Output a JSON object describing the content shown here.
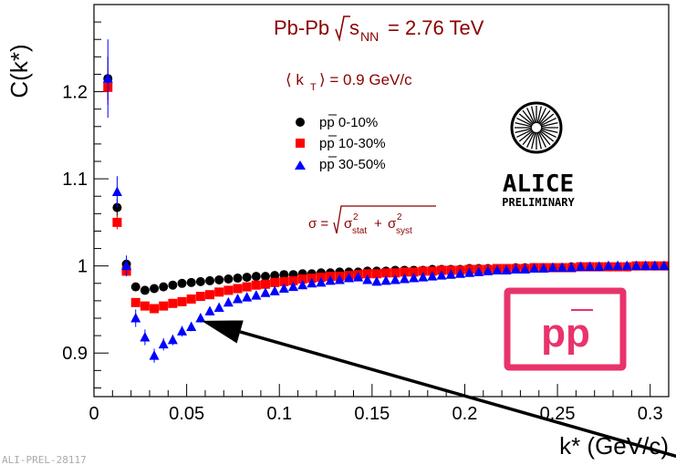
{
  "chart_data": {
    "type": "scatter",
    "xlabel": "k* (GeV/c)",
    "ylabel": "C(k*)",
    "xlim": [
      0,
      0.31
    ],
    "ylim": [
      0.85,
      1.3
    ],
    "x_ticks": [
      "0",
      "0.05",
      "0.1",
      "0.15",
      "0.2",
      "0.25",
      "0.3"
    ],
    "y_ticks": [
      "0.9",
      "1",
      "1.1",
      "1.2"
    ],
    "annotations": {
      "system": "Pb-Pb",
      "energy_label": "s",
      "energy_sub": "NN",
      "energy_value": "= 2.76 TeV",
      "kt": "⟨ k",
      "kt_sub": "T",
      "kt_value": "⟩ = 0.9 GeV/c",
      "sigma_lhs": "σ =",
      "sigma_stat_sym": "σ",
      "sigma_stat_sup": "2",
      "sigma_stat_sub": "stat",
      "sigma_plus": "+",
      "sigma_syst_sym": "σ",
      "sigma_syst_sup": "2",
      "sigma_syst_sub": "syst",
      "logo_title": "ALICE",
      "logo_subtitle": "PRELIMINARY",
      "pair_label": "pp",
      "figure_id": "ALI-PREL-28117"
    },
    "series": [
      {
        "name": "pp̅ 0-10%",
        "legend": "pp 0-10%",
        "color": "#000000",
        "marker": "circle",
        "x": [
          0.0075,
          0.0125,
          0.0175,
          0.0225,
          0.0275,
          0.0325,
          0.0375,
          0.0425,
          0.0475,
          0.0525,
          0.0575,
          0.0625,
          0.0675,
          0.0725,
          0.0775,
          0.0825,
          0.0875,
          0.0925,
          0.0975,
          0.1025,
          0.1075,
          0.1125,
          0.1175,
          0.1225,
          0.1275,
          0.1325,
          0.1375,
          0.1425,
          0.1475,
          0.1525,
          0.1575,
          0.1625,
          0.1675,
          0.1725,
          0.1775,
          0.1825,
          0.1875,
          0.1925,
          0.1975,
          0.2025,
          0.2075,
          0.2125,
          0.2175,
          0.2225,
          0.2275,
          0.2325,
          0.2375,
          0.2425,
          0.2475,
          0.2525,
          0.2575,
          0.2625,
          0.2675,
          0.2725,
          0.2775,
          0.2825,
          0.2875,
          0.2925,
          0.2975,
          0.3025,
          0.3075
        ],
        "y": [
          1.215,
          1.067,
          1.002,
          0.976,
          0.972,
          0.974,
          0.976,
          0.978,
          0.98,
          0.981,
          0.982,
          0.983,
          0.984,
          0.985,
          0.986,
          0.987,
          0.988,
          0.988,
          0.989,
          0.99,
          0.99,
          0.991,
          0.991,
          0.992,
          0.992,
          0.993,
          0.993,
          0.993,
          0.994,
          0.994,
          0.994,
          0.995,
          0.995,
          0.995,
          0.995,
          0.996,
          0.996,
          0.996,
          0.996,
          0.997,
          0.997,
          0.997,
          0.997,
          0.997,
          0.998,
          0.998,
          0.998,
          0.998,
          0.998,
          0.998,
          0.999,
          0.999,
          0.999,
          0.999,
          0.999,
          0.999,
          0.999,
          1.0,
          1.0,
          1.0,
          1.0
        ],
        "y_err": [
          0.025,
          0.01,
          0.006,
          0.004,
          0.003,
          0.003,
          0.003,
          0.002,
          0.002,
          0.002,
          0.002,
          0.002,
          0.002,
          0.002,
          0.002,
          0.002,
          0.002,
          0.002,
          0.002,
          0.002,
          0.002,
          0.002,
          0.002,
          0.002,
          0.002,
          0.002,
          0.002,
          0.002,
          0.002,
          0.002,
          0.002,
          0.002,
          0.002,
          0.002,
          0.002,
          0.002,
          0.002,
          0.002,
          0.002,
          0.002,
          0.002,
          0.002,
          0.002,
          0.002,
          0.002,
          0.002,
          0.002,
          0.002,
          0.002,
          0.002,
          0.002,
          0.002,
          0.002,
          0.002,
          0.002,
          0.002,
          0.002,
          0.002,
          0.002,
          0.002,
          0.002
        ]
      },
      {
        "name": "pp̅ 10-30%",
        "legend": "pp 10-30%",
        "color": "#ff0000",
        "marker": "square",
        "x": [
          0.0075,
          0.0125,
          0.0175,
          0.0225,
          0.0275,
          0.0325,
          0.0375,
          0.0425,
          0.0475,
          0.0525,
          0.0575,
          0.0625,
          0.0675,
          0.0725,
          0.0775,
          0.0825,
          0.0875,
          0.0925,
          0.0975,
          0.1025,
          0.1075,
          0.1125,
          0.1175,
          0.1225,
          0.1275,
          0.1325,
          0.1375,
          0.1425,
          0.1475,
          0.1525,
          0.1575,
          0.1625,
          0.1675,
          0.1725,
          0.1775,
          0.1825,
          0.1875,
          0.1925,
          0.1975,
          0.2025,
          0.2075,
          0.2125,
          0.2175,
          0.2225,
          0.2275,
          0.2325,
          0.2375,
          0.2425,
          0.2475,
          0.2525,
          0.2575,
          0.2625,
          0.2675,
          0.2725,
          0.2775,
          0.2825,
          0.2875,
          0.2925,
          0.2975,
          0.3025,
          0.3075
        ],
        "y": [
          1.205,
          1.05,
          0.994,
          0.958,
          0.954,
          0.951,
          0.954,
          0.957,
          0.959,
          0.962,
          0.965,
          0.967,
          0.97,
          0.972,
          0.974,
          0.976,
          0.978,
          0.979,
          0.981,
          0.982,
          0.983,
          0.985,
          0.986,
          0.987,
          0.988,
          0.988,
          0.989,
          0.99,
          0.991,
          0.991,
          0.992,
          0.992,
          0.993,
          0.993,
          0.994,
          0.994,
          0.995,
          0.995,
          0.995,
          0.996,
          0.996,
          0.996,
          0.997,
          0.997,
          0.997,
          0.997,
          0.998,
          0.998,
          0.998,
          0.998,
          0.998,
          0.999,
          0.999,
          0.999,
          0.999,
          0.999,
          0.999,
          1.0,
          1.0,
          1.0,
          1.0
        ],
        "y_err": [
          0.02,
          0.008,
          0.005,
          0.004,
          0.003,
          0.003,
          0.002,
          0.002,
          0.002,
          0.002,
          0.002,
          0.002,
          0.002,
          0.002,
          0.002,
          0.002,
          0.002,
          0.002,
          0.002,
          0.002,
          0.002,
          0.002,
          0.002,
          0.002,
          0.002,
          0.002,
          0.002,
          0.002,
          0.002,
          0.002,
          0.002,
          0.002,
          0.002,
          0.002,
          0.002,
          0.002,
          0.002,
          0.002,
          0.002,
          0.002,
          0.002,
          0.002,
          0.002,
          0.002,
          0.002,
          0.002,
          0.002,
          0.002,
          0.002,
          0.002,
          0.002,
          0.002,
          0.002,
          0.002,
          0.002,
          0.002,
          0.002,
          0.002,
          0.002,
          0.002,
          0.002
        ]
      },
      {
        "name": "pp̅ 30-50%",
        "legend": "pp 30-50%",
        "color": "#0000ff",
        "marker": "triangle",
        "x": [
          0.0075,
          0.0125,
          0.0175,
          0.0225,
          0.0275,
          0.0325,
          0.0375,
          0.0425,
          0.0475,
          0.0525,
          0.0575,
          0.0625,
          0.0675,
          0.0725,
          0.0775,
          0.0825,
          0.0875,
          0.0925,
          0.0975,
          0.1025,
          0.1075,
          0.1125,
          0.1175,
          0.1225,
          0.1275,
          0.1325,
          0.1375,
          0.1425,
          0.1475,
          0.1525,
          0.1575,
          0.1625,
          0.1675,
          0.1725,
          0.1775,
          0.1825,
          0.1875,
          0.1925,
          0.1975,
          0.2025,
          0.2075,
          0.2125,
          0.2175,
          0.2225,
          0.2275,
          0.2325,
          0.2375,
          0.2425,
          0.2475,
          0.2525,
          0.2575,
          0.2625,
          0.2675,
          0.2725,
          0.2775,
          0.2825,
          0.2875,
          0.2925,
          0.2975,
          0.3025,
          0.3075
        ],
        "y": [
          1.215,
          1.085,
          1.0,
          0.94,
          0.918,
          0.897,
          0.91,
          0.915,
          0.925,
          0.93,
          0.94,
          0.948,
          0.952,
          0.958,
          0.962,
          0.964,
          0.966,
          0.969,
          0.971,
          0.974,
          0.976,
          0.978,
          0.98,
          0.981,
          0.983,
          0.984,
          0.986,
          0.987,
          0.984,
          0.982,
          0.983,
          0.984,
          0.985,
          0.986,
          0.987,
          0.988,
          0.989,
          0.99,
          0.991,
          0.992,
          0.993,
          0.994,
          0.995,
          0.995,
          0.996,
          0.996,
          0.997,
          0.997,
          0.998,
          0.998,
          0.998,
          0.999,
          0.999,
          0.999,
          1.0,
          1.0,
          1.0,
          1.0,
          1.0,
          1.0,
          1.0
        ],
        "y_err": [
          0.045,
          0.018,
          0.012,
          0.01,
          0.009,
          0.008,
          0.007,
          0.006,
          0.006,
          0.005,
          0.005,
          0.005,
          0.004,
          0.004,
          0.004,
          0.004,
          0.004,
          0.004,
          0.004,
          0.003,
          0.003,
          0.003,
          0.003,
          0.003,
          0.003,
          0.003,
          0.003,
          0.003,
          0.003,
          0.003,
          0.003,
          0.003,
          0.003,
          0.003,
          0.003,
          0.003,
          0.003,
          0.003,
          0.003,
          0.003,
          0.003,
          0.003,
          0.003,
          0.003,
          0.003,
          0.003,
          0.003,
          0.003,
          0.003,
          0.003,
          0.003,
          0.003,
          0.003,
          0.003,
          0.003,
          0.003,
          0.003,
          0.003,
          0.003,
          0.003,
          0.003
        ]
      }
    ],
    "arrow": {
      "from": [
        0.32,
        0.778
      ],
      "to": [
        0.058,
        0.937
      ]
    }
  },
  "colors": {
    "annotation": "#8b0000",
    "logo_box": "#e8336b"
  }
}
